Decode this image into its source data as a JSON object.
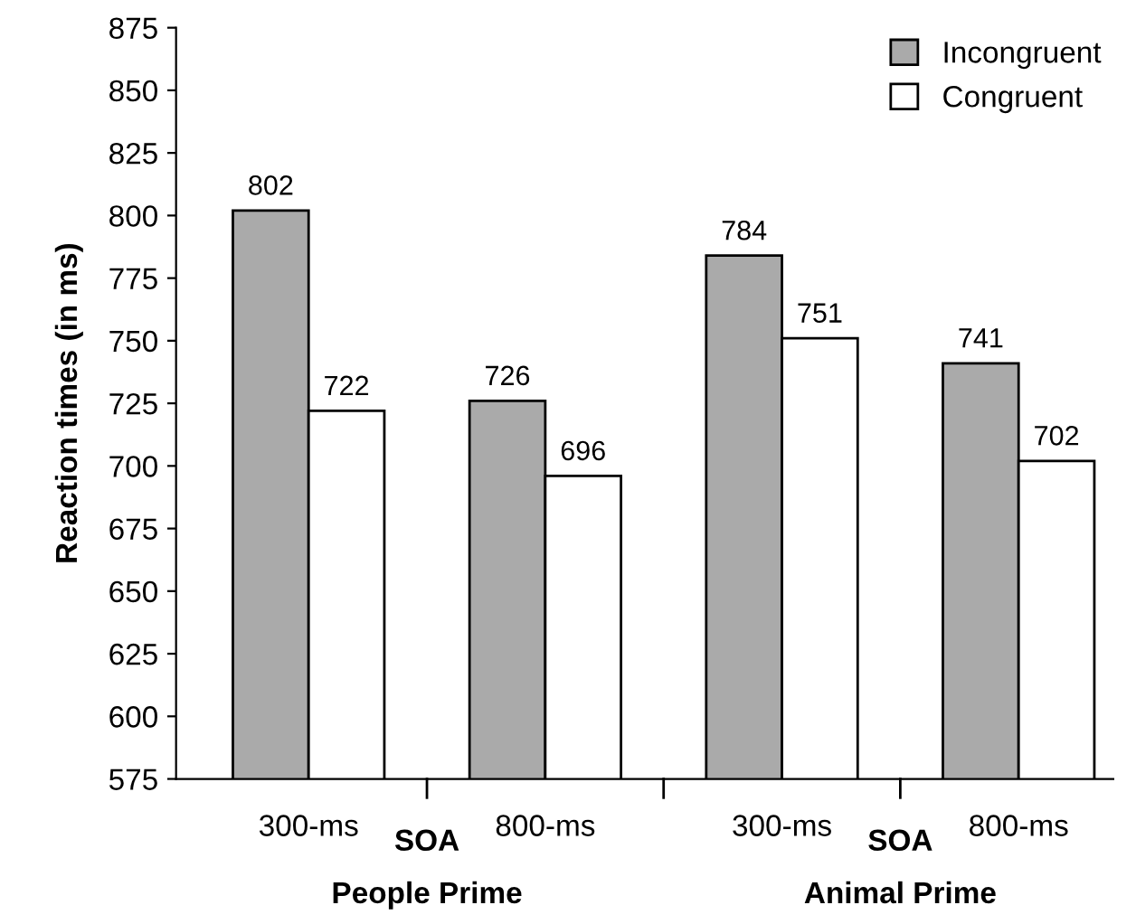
{
  "chart_data": {
    "type": "bar",
    "ylabel": "Reaction times (in ms)",
    "categories": [
      "300-ms",
      "800-ms",
      "300-ms",
      "800-ms"
    ],
    "series": [
      {
        "name": "Incongruent",
        "color": "#aaaaaa",
        "values": [
          802,
          726,
          784,
          741
        ]
      },
      {
        "name": "Congruent",
        "color": "#ffffff",
        "values": [
          722,
          696,
          751,
          702
        ]
      }
    ],
    "ylim": [
      575,
      875
    ],
    "yticks": [
      575,
      600,
      625,
      650,
      675,
      700,
      725,
      750,
      775,
      800,
      825,
      850,
      875
    ],
    "data_labels": true,
    "legend": "top right",
    "grid": false,
    "annotations": [
      "SOA",
      "SOA",
      "People Prime",
      "Animal Prime"
    ]
  }
}
